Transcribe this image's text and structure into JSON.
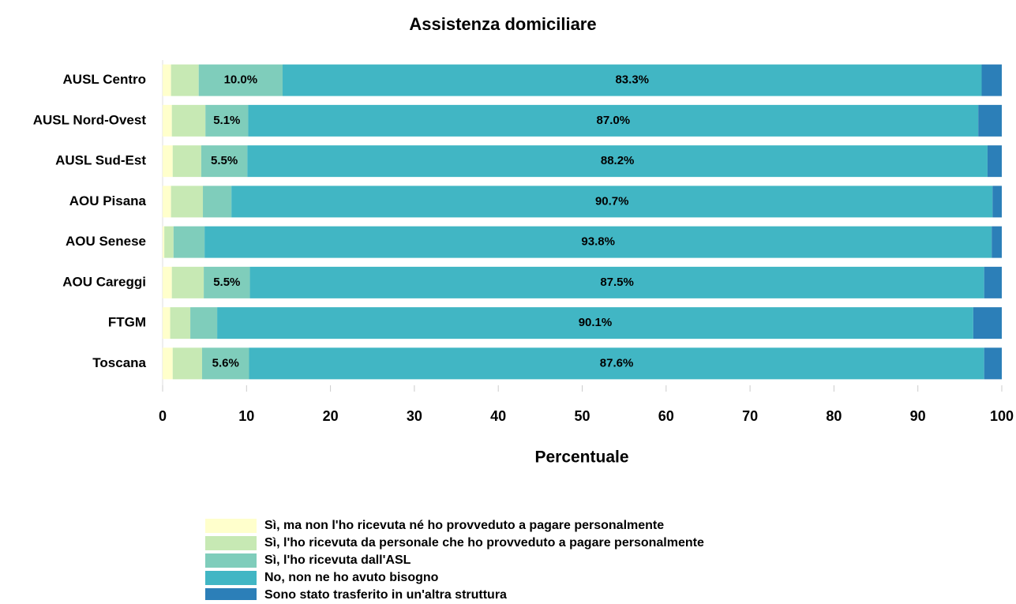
{
  "chart_data": {
    "type": "stacked_bar_horizontal",
    "title": "Assistenza domiciliare",
    "x_label": "Percentuale",
    "categories": [
      "AUSL Centro",
      "AUSL Nord-Ovest",
      "AUSL Sud-Est",
      "AOU Pisana",
      "AOU Senese",
      "AOU Careggi",
      "FTGM",
      "Toscana"
    ],
    "xlim": [
      0,
      100
    ],
    "xticks": [
      0,
      10,
      20,
      30,
      40,
      50,
      60,
      70,
      80,
      90,
      100
    ],
    "legend": "bottom",
    "series": [
      {
        "name": "Sì, ma non l'ho ricevuta né ho provveduto a pagare personalmente",
        "color": "#ffffcc",
        "values": [
          1.0,
          1.1,
          1.2,
          1.0,
          0.2,
          1.1,
          0.9,
          1.2
        ],
        "value_labels": [
          null,
          null,
          null,
          null,
          null,
          null,
          null,
          null
        ]
      },
      {
        "name": "Sì, l'ho ricevuta da personale che ho provveduto a pagare personalmente",
        "color": "#c7e9b4",
        "values": [
          3.3,
          4.0,
          3.4,
          3.8,
          1.1,
          3.8,
          2.4,
          3.5
        ],
        "value_labels": [
          null,
          null,
          null,
          null,
          null,
          null,
          null,
          null
        ]
      },
      {
        "name": "Sì, l'ho ricevuta dall'ASL",
        "color": "#7fcdbb",
        "values": [
          10.0,
          5.1,
          5.5,
          3.4,
          3.7,
          5.5,
          3.2,
          5.6
        ],
        "value_labels": [
          "10.0%",
          "5.1%",
          "5.5%",
          null,
          null,
          "5.5%",
          null,
          "5.6%"
        ]
      },
      {
        "name": "No, non ne ho avuto bisogno",
        "color": "#41b6c4",
        "values": [
          83.3,
          87.0,
          88.2,
          90.7,
          93.8,
          87.5,
          90.1,
          87.6
        ],
        "value_labels": [
          "83.3%",
          "87.0%",
          "88.2%",
          "90.7%",
          "93.8%",
          "87.5%",
          "90.1%",
          "87.6%"
        ]
      },
      {
        "name": "Sono stato trasferito in un'altra struttura",
        "color": "#2c7fb8",
        "values": [
          2.4,
          2.8,
          1.7,
          1.1,
          1.2,
          2.1,
          3.4,
          2.1
        ],
        "value_labels": [
          null,
          null,
          null,
          null,
          null,
          null,
          null,
          null
        ]
      }
    ]
  }
}
